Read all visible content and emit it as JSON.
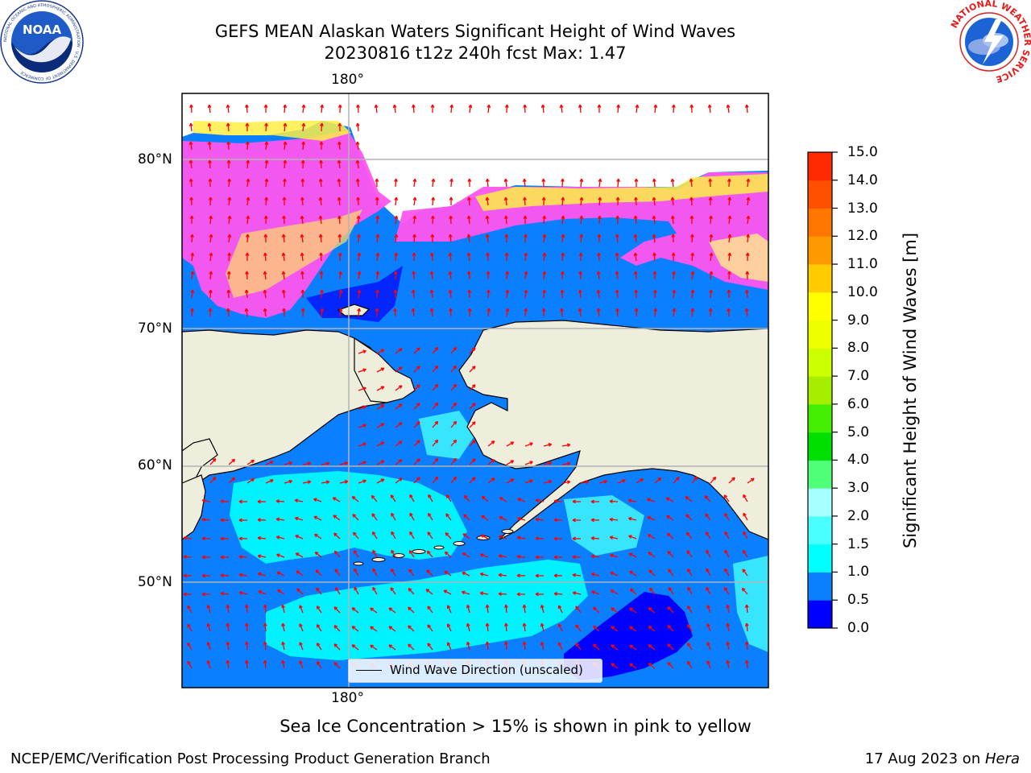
{
  "title_line1": "GEFS MEAN Alaskan Waters Significant Height of Wind Waves",
  "title_line2": "20230816 t12z 240h fcst   Max: 1.47",
  "logos": {
    "left": {
      "name": "noaa-logo",
      "text": "NOAA",
      "ring_text": "NATIONAL OCEANIC AND ATMOSPHERIC ADMINISTRATION · U.S. DEPARTMENT OF COMMERCE"
    },
    "right": {
      "name": "nws-logo",
      "ring_text": "NATIONAL WEATHER SERVICE"
    }
  },
  "map": {
    "lon_labels": [
      "180°",
      "180°"
    ],
    "lat_labels": [
      "80°N",
      "70°N",
      "60°N",
      "50°N"
    ],
    "colors": {
      "land": "#efeedd",
      "water": "#0a7fff",
      "arrow": "#ff0000",
      "grid": "#b3b3b3"
    }
  },
  "legend": {
    "label": "Wind Wave Direction (unscaled)"
  },
  "colorbar": {
    "title": "Significant Height of Wind Waves [m]",
    "ticks": [
      "0.0",
      "0.5",
      "1.0",
      "1.5",
      "2.0",
      "3.0",
      "4.0",
      "5.0",
      "6.0",
      "7.0",
      "8.0",
      "9.0",
      "10.0",
      "11.0",
      "12.0",
      "13.0",
      "14.0",
      "15.0"
    ],
    "colors": [
      "#0000ff",
      "#0a80ff",
      "#00ffff",
      "#49ffff",
      "#a8ffff",
      "#50ff78",
      "#00e000",
      "#44ee00",
      "#a6ee00",
      "#ccff00",
      "#eeff00",
      "#ffff00",
      "#ffcc00",
      "#ff9900",
      "#ff7700",
      "#ff5000",
      "#ff2800"
    ]
  },
  "note": "Sea Ice Concentration > 15% is shown in pink to yellow",
  "footer_left": "NCEP/EMC/Verification Post Processing Product Generation Branch",
  "footer_right_prefix": "17 Aug 2023 on ",
  "footer_right_host": "Hera"
}
